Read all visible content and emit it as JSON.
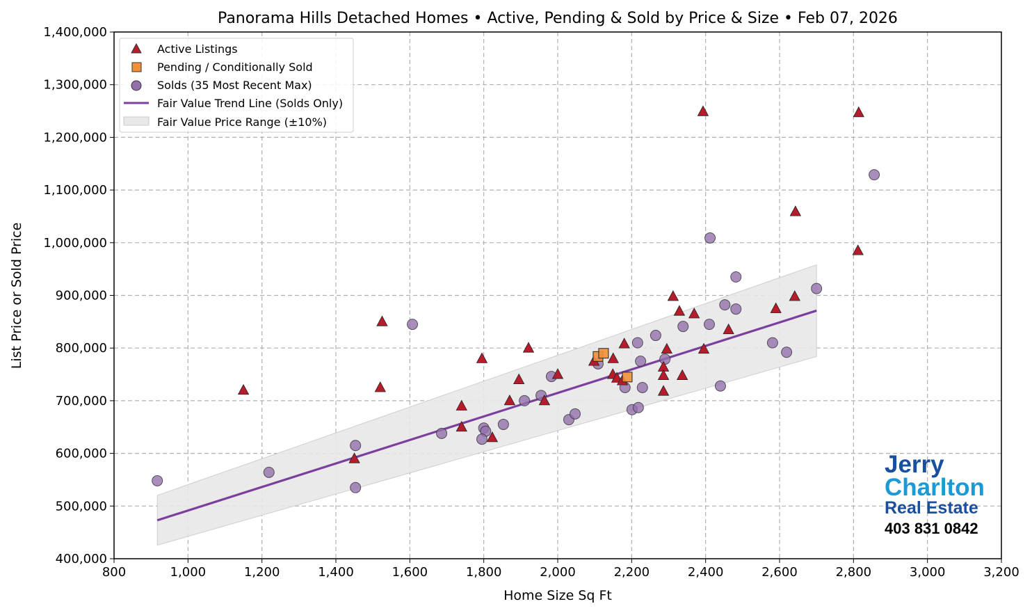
{
  "chart_data": {
    "type": "scatter",
    "title": "Panorama Hills Detached Homes • Active, Pending & Sold by Price & Size • Feb 07, 2026",
    "xlabel": "Home Size Sq Ft",
    "ylabel": "List Price or Sold Price",
    "xlim": [
      800,
      3200
    ],
    "ylim": [
      400000,
      1400000
    ],
    "xticks": [
      800,
      1000,
      1200,
      1400,
      1600,
      1800,
      2000,
      2200,
      2400,
      2600,
      2800,
      3000,
      3200
    ],
    "xtick_labels": [
      "800",
      "1,000",
      "1,200",
      "1,400",
      "1,600",
      "1,800",
      "2,000",
      "2,200",
      "2,400",
      "2,600",
      "2,800",
      "3,000",
      "3,200"
    ],
    "yticks": [
      400000,
      500000,
      600000,
      700000,
      800000,
      900000,
      1000000,
      1100000,
      1200000,
      1300000,
      1400000
    ],
    "ytick_labels": [
      "400,000",
      "500,000",
      "600,000",
      "700,000",
      "800,000",
      "900,000",
      "1,000,000",
      "1,100,000",
      "1,200,000",
      "1,300,000",
      "1,400,000"
    ],
    "grid": true,
    "legend_position": "top-left",
    "series": [
      {
        "name": "Active Listings",
        "marker": "triangle",
        "color": "#b71c2c",
        "points": [
          [
            1150,
            720000
          ],
          [
            1450,
            590000
          ],
          [
            1520,
            725000
          ],
          [
            1525,
            850000
          ],
          [
            1740,
            690000
          ],
          [
            1740,
            650000
          ],
          [
            1795,
            780000
          ],
          [
            1823,
            630000
          ],
          [
            1870,
            700000
          ],
          [
            1895,
            740000
          ],
          [
            1921,
            800000
          ],
          [
            1964,
            700000
          ],
          [
            2000,
            750000
          ],
          [
            2098,
            775000
          ],
          [
            2150,
            780000
          ],
          [
            2149,
            750000
          ],
          [
            2160,
            743000
          ],
          [
            2175,
            738000
          ],
          [
            2180,
            808000
          ],
          [
            2286,
            764000
          ],
          [
            2286,
            748000
          ],
          [
            2286,
            718000
          ],
          [
            2295,
            798000
          ],
          [
            2312,
            898000
          ],
          [
            2329,
            870000
          ],
          [
            2337,
            748000
          ],
          [
            2369,
            865000
          ],
          [
            2393,
            1249000
          ],
          [
            2395,
            798000
          ],
          [
            2462,
            835000
          ],
          [
            2590,
            875000
          ],
          [
            2641,
            898000
          ],
          [
            2643,
            1059000
          ],
          [
            2812,
            985000
          ],
          [
            2814,
            1247000
          ]
        ]
      },
      {
        "name": "Pending / Conditionally Sold",
        "marker": "square",
        "color": "#f0913a",
        "points": [
          [
            2109,
            784000
          ],
          [
            2124,
            790000
          ],
          [
            2188,
            745000
          ]
        ]
      },
      {
        "name": "Solds (35 Most Recent Max)",
        "marker": "circle",
        "color": "#9370ab",
        "points": [
          [
            917,
            548000
          ],
          [
            1219,
            564000
          ],
          [
            1453,
            615000
          ],
          [
            1453,
            535000
          ],
          [
            1607,
            845000
          ],
          [
            1686,
            638000
          ],
          [
            1800,
            648000
          ],
          [
            1805,
            642000
          ],
          [
            1795,
            627000
          ],
          [
            1853,
            655000
          ],
          [
            1910,
            700000
          ],
          [
            1955,
            710000
          ],
          [
            1983,
            746000
          ],
          [
            2030,
            664000
          ],
          [
            2047,
            675000
          ],
          [
            2109,
            770000
          ],
          [
            2182,
            725000
          ],
          [
            2201,
            683000
          ],
          [
            2218,
            687000
          ],
          [
            2216,
            810000
          ],
          [
            2224,
            775000
          ],
          [
            2229,
            725000
          ],
          [
            2265,
            824000
          ],
          [
            2290,
            779000
          ],
          [
            2339,
            841000
          ],
          [
            2410,
            845000
          ],
          [
            2452,
            882000
          ],
          [
            2482,
            874000
          ],
          [
            2440,
            728000
          ],
          [
            2482,
            935000
          ],
          [
            2412,
            1009000
          ],
          [
            2581,
            810000
          ],
          [
            2619,
            792000
          ],
          [
            2700,
            913000
          ],
          [
            2856,
            1129000
          ]
        ]
      }
    ],
    "trend_line": {
      "name": "Fair Value Trend Line (Solds Only)",
      "color": "#7b3f9e",
      "x": [
        917,
        2700
      ],
      "y": [
        473000,
        871000
      ]
    },
    "band": {
      "name": "Fair Value Price Range (±10%)",
      "color": "#d9d9d9",
      "pct": 0.1
    }
  },
  "logo": {
    "line1": "Jerry",
    "line2": "Charlton",
    "line3": "Real Estate",
    "phone": "403 831 0842"
  }
}
